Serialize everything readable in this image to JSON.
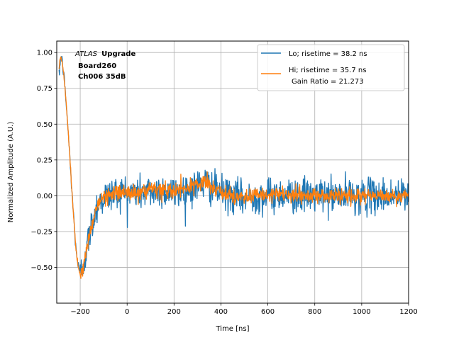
{
  "chart_data": {
    "type": "line",
    "title": "",
    "xlabel": "Time [ns]",
    "ylabel": "Normalized Amplitude (A.U.)",
    "xlim": [
      -300,
      1200
    ],
    "ylim": [
      -0.75,
      1.08
    ],
    "grid": true,
    "legend_position": "top-right",
    "x_ticks": [
      -200,
      0,
      200,
      400,
      600,
      800,
      1000,
      1200
    ],
    "y_ticks": [
      -0.5,
      -0.25,
      0.0,
      0.25,
      0.5,
      0.75,
      1.0
    ],
    "x_tick_labels": [
      "−200",
      "0",
      "200",
      "400",
      "600",
      "800",
      "1000",
      "1200"
    ],
    "y_tick_labels": [
      "−0.50",
      "−0.25",
      "0.00",
      "0.25",
      "0.50",
      "0.75",
      "1.00"
    ],
    "annotation": {
      "atlas": "ATLAS",
      "upgrade": "Upgrade",
      "line2": "Board260",
      "line3": "Ch006 35dB"
    },
    "legend": {
      "lo_label": "Lo; risetime = 38.2 ns",
      "hi_label_line1": "Hi; risetime = 35.7 ns",
      "hi_label_line2": "Gain Ratio = 21.273"
    },
    "series": [
      {
        "name": "Lo; risetime = 38.2 ns",
        "color": "#1f77b4",
        "noise": 0.1,
        "x": [
          -290,
          -285,
          -280,
          -270,
          -260,
          -250,
          -240,
          -230,
          -220,
          -210,
          -200,
          -190,
          -180,
          -170,
          -160,
          -150,
          -140,
          -130,
          -120,
          -110,
          -100,
          -80,
          -60,
          -40,
          -20,
          0,
          50,
          100,
          150,
          200,
          250,
          300,
          330,
          350,
          380,
          400,
          450,
          500,
          550,
          600,
          650,
          700,
          800,
          900,
          1000,
          1100,
          1200
        ],
        "y": [
          0.82,
          0.95,
          0.97,
          0.85,
          0.65,
          0.42,
          0.15,
          -0.1,
          -0.33,
          -0.48,
          -0.55,
          -0.5,
          -0.42,
          -0.35,
          -0.27,
          -0.2,
          -0.13,
          -0.08,
          -0.05,
          -0.03,
          -0.01,
          0.0,
          0.02,
          0.02,
          0.03,
          0.02,
          0.02,
          0.03,
          0.04,
          0.02,
          0.04,
          0.07,
          0.09,
          0.07,
          0.04,
          0.02,
          0.0,
          -0.02,
          0.0,
          0.0,
          0.01,
          0.0,
          0.0,
          0.0,
          0.0,
          0.0,
          0.0
        ]
      },
      {
        "name": "Hi; risetime = 35.7 ns",
        "color": "#ff7f0e",
        "noise": 0.045,
        "x": [
          -290,
          -285,
          -280,
          -270,
          -260,
          -250,
          -240,
          -230,
          -220,
          -210,
          -200,
          -190,
          -180,
          -170,
          -160,
          -150,
          -140,
          -130,
          -120,
          -110,
          -100,
          -80,
          -60,
          -40,
          -20,
          0,
          50,
          100,
          150,
          200,
          250,
          300,
          330,
          350,
          380,
          400,
          450,
          500,
          550,
          600,
          650,
          700,
          800,
          900,
          1000,
          1100,
          1200
        ],
        "y": [
          0.9,
          0.97,
          0.96,
          0.85,
          0.65,
          0.42,
          0.15,
          -0.1,
          -0.33,
          -0.48,
          -0.56,
          -0.52,
          -0.44,
          -0.36,
          -0.28,
          -0.2,
          -0.13,
          -0.08,
          -0.05,
          -0.03,
          -0.01,
          0.0,
          0.02,
          0.02,
          0.03,
          0.02,
          0.02,
          0.03,
          0.04,
          0.03,
          0.05,
          0.08,
          0.1,
          0.07,
          0.04,
          0.02,
          0.0,
          -0.01,
          0.0,
          0.0,
          0.01,
          0.0,
          0.0,
          0.0,
          0.0,
          0.0,
          0.0
        ]
      }
    ]
  }
}
